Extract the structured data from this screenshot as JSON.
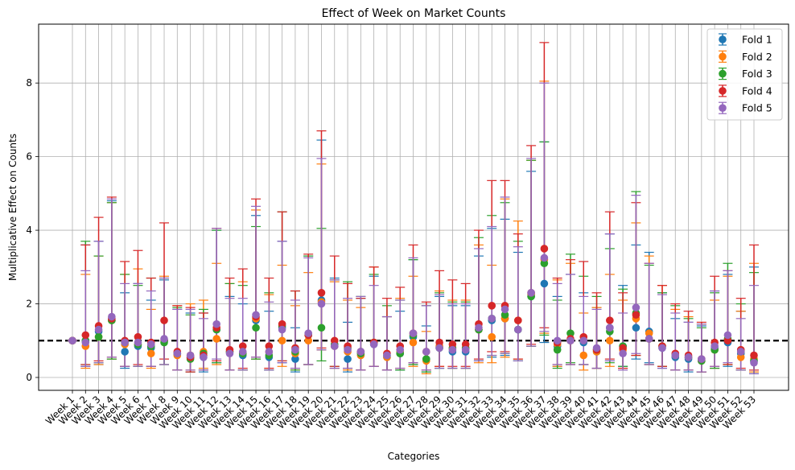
{
  "chart_data": {
    "type": "errorbar",
    "title": "Effect of Week on Market Counts",
    "xlabel": "Categories",
    "ylabel": "Multiplicative Effect on Counts",
    "ylim": [
      -0.35,
      9.6
    ],
    "yticks": [
      0,
      2,
      4,
      6,
      8
    ],
    "reference_line": 1,
    "grid": true,
    "legend_position": "top-right",
    "categories": [
      "Week 1",
      "Week 2",
      "Week 3",
      "Week 4",
      "Week 5",
      "Week 6",
      "Week 7",
      "Week 8",
      "Week 9",
      "Week 10",
      "Week 11",
      "Week 12",
      "Week 13",
      "Week 14",
      "Week 15",
      "Week 16",
      "Week 17",
      "Week 18",
      "Week 19",
      "Week 20",
      "Week 21",
      "Week 22",
      "Week 23",
      "Week 24",
      "Week 25",
      "Week 26",
      "Week 27",
      "Week 28",
      "Week 29",
      "Week 30",
      "Week 31",
      "Week 32",
      "Week 33",
      "Week 34",
      "Week 35",
      "Week 36",
      "Week 37",
      "Week 38",
      "Week 39",
      "Week 40",
      "Week 41",
      "Week 42",
      "Week 43",
      "Week 44",
      "Week 45",
      "Week 46",
      "Week 47",
      "Week 48",
      "Week 49",
      "Week 50",
      "Week 51",
      "Week 52",
      "Week 53"
    ],
    "series": [
      {
        "name": "Fold 1",
        "color": "#1f77b4",
        "values": [
          1.0,
          1.0,
          1.25,
          1.55,
          0.7,
          0.85,
          0.8,
          1.0,
          0.65,
          0.55,
          0.55,
          1.3,
          0.7,
          0.6,
          1.55,
          0.55,
          1.35,
          0.5,
          1.15,
          2.1,
          0.85,
          0.5,
          0.7,
          0.9,
          0.55,
          0.65,
          1.1,
          0.5,
          0.8,
          0.7,
          0.7,
          1.3,
          1.55,
          1.6,
          1.3,
          2.2,
          2.55,
          0.85,
          1.0,
          0.95,
          0.7,
          1.35,
          0.85,
          1.35,
          1.25,
          0.8,
          0.55,
          0.5,
          0.45,
          0.8,
          0.95,
          0.65,
          0.45
        ],
        "low": [
          1.0,
          0.3,
          0.35,
          0.5,
          0.25,
          0.3,
          0.3,
          0.35,
          0.2,
          0.15,
          0.15,
          0.4,
          0.2,
          0.2,
          0.5,
          0.2,
          0.4,
          0.15,
          0.35,
          0.75,
          0.25,
          0.15,
          0.2,
          0.3,
          0.2,
          0.2,
          0.35,
          0.15,
          0.25,
          0.25,
          0.25,
          0.45,
          0.55,
          0.6,
          0.45,
          0.85,
          0.95,
          0.3,
          0.35,
          0.35,
          0.25,
          0.45,
          0.3,
          0.5,
          0.4,
          0.25,
          0.2,
          0.15,
          0.15,
          0.25,
          0.3,
          0.2,
          0.1
        ],
        "high": [
          1.0,
          3.6,
          3.7,
          4.8,
          2.3,
          2.55,
          2.1,
          2.65,
          1.85,
          1.75,
          1.75,
          4.0,
          2.2,
          2.0,
          4.4,
          1.8,
          3.7,
          1.35,
          3.3,
          6.45,
          2.7,
          1.5,
          2.15,
          2.75,
          1.65,
          1.8,
          3.2,
          1.4,
          2.2,
          1.95,
          1.95,
          3.3,
          4.05,
          4.3,
          3.4,
          5.6,
          6.4,
          2.2,
          2.8,
          2.3,
          1.9,
          3.9,
          2.5,
          3.6,
          3.4,
          2.3,
          1.6,
          1.5,
          1.4,
          2.35,
          2.8,
          1.8,
          3.0
        ]
      },
      {
        "name": "Fold 2",
        "color": "#ff7f0e",
        "values": [
          1.0,
          0.85,
          1.1,
          1.55,
          0.9,
          0.9,
          0.65,
          1.0,
          0.6,
          0.6,
          0.7,
          1.05,
          0.7,
          0.65,
          1.6,
          0.7,
          1.0,
          0.65,
          1.0,
          2.05,
          0.85,
          0.7,
          0.6,
          0.95,
          0.55,
          0.7,
          0.95,
          0.45,
          0.85,
          0.8,
          0.8,
          1.3,
          1.1,
          1.6,
          1.55,
          2.25,
          3.2,
          0.9,
          1.0,
          0.6,
          0.7,
          1.0,
          0.75,
          1.6,
          1.2,
          0.85,
          0.6,
          0.55,
          0.45,
          0.75,
          1.05,
          0.55,
          0.5
        ],
        "low": [
          1.0,
          0.25,
          0.35,
          0.5,
          0.3,
          0.3,
          0.25,
          0.35,
          0.2,
          0.2,
          0.25,
          0.35,
          0.2,
          0.2,
          0.5,
          0.25,
          0.3,
          0.2,
          0.35,
          0.75,
          0.25,
          0.2,
          0.2,
          0.3,
          0.2,
          0.25,
          0.3,
          0.1,
          0.3,
          0.25,
          0.25,
          0.4,
          0.4,
          0.55,
          0.5,
          0.85,
          1.2,
          0.3,
          0.35,
          0.2,
          0.25,
          0.3,
          0.25,
          0.6,
          0.35,
          0.3,
          0.2,
          0.2,
          0.15,
          0.25,
          0.35,
          0.2,
          0.15
        ],
        "high": [
          1.0,
          2.8,
          3.3,
          4.75,
          2.8,
          2.95,
          1.85,
          2.75,
          1.95,
          2.0,
          2.1,
          3.1,
          2.55,
          2.6,
          4.55,
          2.25,
          3.05,
          1.95,
          2.85,
          5.8,
          2.6,
          2.1,
          1.9,
          3.0,
          1.65,
          2.15,
          2.75,
          1.25,
          2.35,
          2.1,
          2.1,
          3.6,
          3.05,
          4.85,
          4.25,
          5.9,
          8.05,
          2.65,
          3.1,
          1.75,
          1.9,
          2.8,
          2.1,
          4.2,
          3.3,
          2.5,
          1.85,
          1.65,
          1.45,
          2.1,
          2.75,
          1.8,
          3.1
        ]
      },
      {
        "name": "Fold 3",
        "color": "#2ca02c",
        "values": [
          1.0,
          1.0,
          1.1,
          1.55,
          0.95,
          0.9,
          0.85,
          0.95,
          0.65,
          0.5,
          0.65,
          1.3,
          0.7,
          0.65,
          1.35,
          0.6,
          1.4,
          0.7,
          1.15,
          1.35,
          0.9,
          0.8,
          0.65,
          0.95,
          0.6,
          0.65,
          1.15,
          0.5,
          0.8,
          0.8,
          0.8,
          1.3,
          1.6,
          1.7,
          1.3,
          2.2,
          3.1,
          0.75,
          1.2,
          1.0,
          0.75,
          1.25,
          0.85,
          1.75,
          1.05,
          0.85,
          0.6,
          0.55,
          0.45,
          0.75,
          1.05,
          0.7,
          0.45
        ],
        "low": [
          1.0,
          0.35,
          0.4,
          0.5,
          0.3,
          0.3,
          0.3,
          0.35,
          0.2,
          0.15,
          0.2,
          0.4,
          0.2,
          0.2,
          0.5,
          0.2,
          0.45,
          0.2,
          0.35,
          0.45,
          0.3,
          0.25,
          0.2,
          0.3,
          0.2,
          0.2,
          0.35,
          0.15,
          0.25,
          0.25,
          0.25,
          0.45,
          0.6,
          0.65,
          0.45,
          0.85,
          1.15,
          0.25,
          0.4,
          0.35,
          0.25,
          0.4,
          0.3,
          0.6,
          0.35,
          0.3,
          0.2,
          0.2,
          0.15,
          0.25,
          0.35,
          0.2,
          0.1
        ],
        "high": [
          1.0,
          3.7,
          3.3,
          4.75,
          2.8,
          2.5,
          2.7,
          2.7,
          1.9,
          1.7,
          1.85,
          4.0,
          2.55,
          2.5,
          4.1,
          2.3,
          4.5,
          2.35,
          3.3,
          4.05,
          2.65,
          2.6,
          2.2,
          2.8,
          1.95,
          2.1,
          3.2,
          1.95,
          2.3,
          2.05,
          2.05,
          3.8,
          4.4,
          4.75,
          3.7,
          5.9,
          6.4,
          2.1,
          3.35,
          2.75,
          2.2,
          3.5,
          2.4,
          5.05,
          3.05,
          2.3,
          1.95,
          1.6,
          1.35,
          2.3,
          3.1,
          2.0,
          2.85
        ]
      },
      {
        "name": "Fold 4",
        "color": "#d62728",
        "values": [
          1.0,
          1.15,
          1.4,
          1.6,
          1.0,
          1.1,
          0.95,
          1.55,
          0.7,
          0.55,
          0.6,
          1.35,
          0.75,
          0.85,
          1.65,
          0.85,
          1.45,
          0.8,
          1.15,
          2.3,
          1.0,
          0.85,
          0.7,
          0.95,
          0.65,
          0.85,
          1.2,
          0.7,
          0.95,
          0.9,
          0.9,
          1.45,
          1.95,
          1.95,
          1.55,
          2.3,
          3.5,
          0.95,
          1.05,
          1.1,
          0.75,
          1.55,
          0.8,
          1.7,
          1.05,
          0.85,
          0.65,
          0.6,
          0.5,
          0.95,
          1.0,
          0.75,
          0.6
        ],
        "low": [
          1.0,
          0.35,
          0.45,
          0.55,
          0.3,
          0.35,
          0.3,
          0.5,
          0.2,
          0.15,
          0.2,
          0.45,
          0.2,
          0.25,
          0.55,
          0.25,
          0.45,
          0.25,
          0.35,
          0.8,
          0.3,
          0.25,
          0.2,
          0.3,
          0.2,
          0.25,
          0.4,
          0.2,
          0.3,
          0.3,
          0.3,
          0.5,
          0.7,
          0.7,
          0.5,
          0.9,
          1.35,
          0.35,
          0.35,
          0.35,
          0.25,
          0.5,
          0.25,
          0.6,
          0.35,
          0.3,
          0.2,
          0.2,
          0.15,
          0.3,
          0.35,
          0.25,
          0.2
        ],
        "high": [
          1.0,
          3.6,
          4.35,
          4.9,
          3.15,
          3.45,
          2.7,
          4.2,
          1.95,
          1.9,
          1.75,
          4.05,
          2.7,
          2.95,
          4.85,
          2.7,
          4.5,
          2.35,
          3.35,
          6.7,
          3.3,
          2.55,
          2.15,
          3.0,
          2.15,
          2.45,
          3.6,
          2.05,
          2.9,
          2.65,
          2.55,
          4.0,
          5.35,
          5.35,
          3.9,
          6.3,
          9.1,
          2.7,
          3.2,
          3.15,
          2.3,
          4.5,
          2.3,
          4.75,
          3.1,
          2.5,
          2.0,
          1.8,
          1.5,
          2.75,
          2.9,
          2.15,
          3.6
        ]
      },
      {
        "name": "Fold 5",
        "color": "#9467bd",
        "values": [
          1.0,
          0.95,
          1.3,
          1.65,
          0.95,
          0.95,
          0.9,
          1.05,
          0.65,
          0.6,
          0.55,
          1.45,
          0.65,
          0.7,
          1.7,
          0.7,
          1.3,
          0.75,
          1.2,
          2.0,
          0.85,
          0.75,
          0.7,
          0.9,
          0.6,
          0.75,
          1.2,
          0.7,
          0.8,
          0.75,
          0.75,
          1.35,
          1.6,
          1.85,
          1.3,
          2.3,
          3.25,
          1.0,
          1.0,
          1.0,
          0.8,
          1.35,
          0.65,
          1.9,
          1.05,
          0.8,
          0.6,
          0.55,
          0.5,
          0.85,
          1.15,
          0.7,
          0.4
        ],
        "low": [
          1.0,
          0.3,
          0.4,
          0.55,
          0.3,
          0.3,
          0.3,
          0.35,
          0.2,
          0.2,
          0.2,
          0.5,
          0.2,
          0.2,
          0.55,
          0.2,
          0.4,
          0.25,
          0.35,
          0.75,
          0.25,
          0.25,
          0.2,
          0.3,
          0.2,
          0.25,
          0.4,
          0.2,
          0.25,
          0.25,
          0.25,
          0.45,
          0.6,
          0.65,
          0.45,
          0.85,
          1.25,
          0.35,
          0.35,
          0.35,
          0.25,
          0.45,
          0.2,
          0.65,
          0.35,
          0.25,
          0.2,
          0.2,
          0.15,
          0.3,
          0.4,
          0.2,
          0.1
        ],
        "high": [
          1.0,
          2.9,
          3.7,
          4.85,
          2.55,
          2.55,
          2.35,
          2.7,
          1.85,
          1.85,
          1.6,
          4.05,
          2.15,
          2.15,
          4.65,
          2.05,
          3.7,
          2.1,
          3.25,
          5.95,
          2.65,
          2.15,
          2.2,
          2.5,
          1.65,
          2.1,
          3.25,
          1.95,
          2.25,
          2.0,
          2.0,
          3.5,
          4.1,
          4.9,
          3.55,
          5.95,
          8.0,
          2.55,
          2.8,
          2.2,
          1.85,
          3.9,
          1.75,
          4.95,
          3.1,
          2.25,
          1.75,
          1.5,
          1.45,
          2.35,
          2.9,
          1.6,
          2.5
        ]
      }
    ]
  }
}
